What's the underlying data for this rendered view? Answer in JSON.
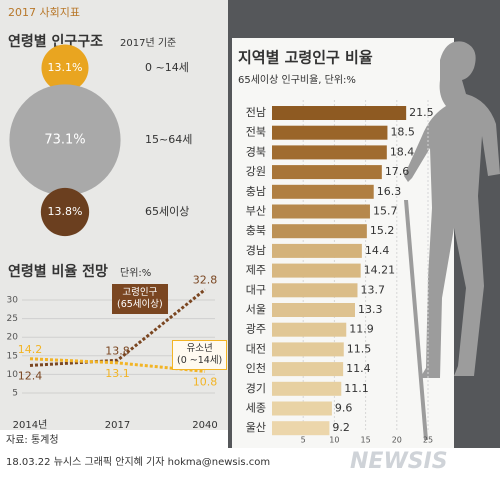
{
  "header": {
    "tag": "2017 사회지표"
  },
  "chart_data": [
    {
      "type": "bubble",
      "title": "연령별 인구구조",
      "subtitle": "2017년 기준",
      "categories": [
        "0 ~14세",
        "15~64세",
        "65세이상"
      ],
      "values": [
        13.1,
        73.1,
        13.8
      ],
      "value_labels": [
        "13.1%",
        "73.1%",
        "13.8%"
      ],
      "colors": [
        "#e9a520",
        "#a9a9a9",
        "#6b3f1f"
      ]
    },
    {
      "type": "line",
      "title": "연령별 비율 전망",
      "subtitle": "단위:%",
      "categories": [
        "2014년",
        "2017",
        "2040"
      ],
      "series": [
        {
          "name": "고령인구\n(65세이상)",
          "color": "#7a4621",
          "values": [
            12.4,
            13.8,
            32.8
          ]
        },
        {
          "name": "유소년\n(0 ~14세)",
          "color": "#f2b425",
          "values": [
            14.2,
            13.1,
            10.8
          ]
        }
      ],
      "ylim": [
        5,
        35
      ],
      "yticks": [
        5,
        10,
        15,
        20,
        25,
        30
      ],
      "grid": true
    },
    {
      "type": "barh",
      "title": "지역별 고령인구 비율",
      "subtitle": "65세이상 인구비율, 단위:%",
      "categories": [
        "전남",
        "전북",
        "경북",
        "강원",
        "충남",
        "부산",
        "충북",
        "경남",
        "제주",
        "대구",
        "서울",
        "광주",
        "대전",
        "인천",
        "경기",
        "세종",
        "울산"
      ],
      "values": [
        21.5,
        18.5,
        18.4,
        17.6,
        16.3,
        15.7,
        15.2,
        14.4,
        14.21,
        13.7,
        13.3,
        11.9,
        11.5,
        11.4,
        11.1,
        9.6,
        9.2
      ],
      "colors": [
        "#8e5a22",
        "#9a6529",
        "#a06c30",
        "#a87538",
        "#b07f42",
        "#b6884c",
        "#bc9155",
        "#d4b27a",
        "#d8b881",
        "#dbbd88",
        "#dec28f",
        "#e1c795",
        "#e3ca99",
        "#e5cd9d",
        "#e7d0a1",
        "#e9d3a5",
        "#ecd6ab"
      ],
      "xlim": [
        0,
        25
      ],
      "xticks": [
        5,
        10,
        15,
        20,
        25
      ],
      "grid": true
    }
  ],
  "footer": {
    "source": "자료: 통계청",
    "credit": "18.03.22 뉴시스 그래픽 안지혜 기자 hokma@newsis.com",
    "logo": "NEWSIS"
  }
}
